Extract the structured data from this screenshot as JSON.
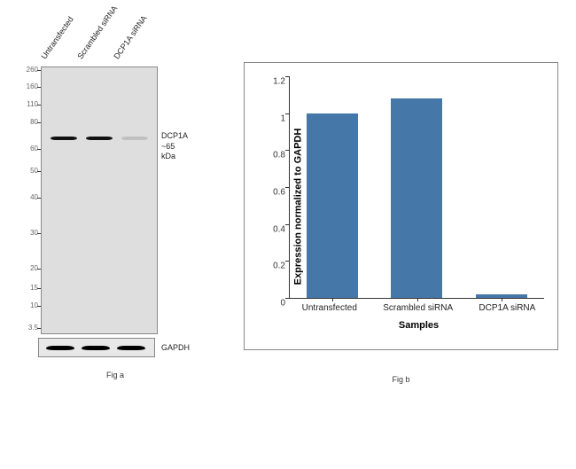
{
  "blot": {
    "lanes": [
      "Untransfected",
      "Scrambled siRNA",
      "DCP1A siRNA"
    ],
    "markers": [
      {
        "label": "260",
        "pos": 4
      },
      {
        "label": "160",
        "pos": 23
      },
      {
        "label": "110",
        "pos": 43
      },
      {
        "label": "80",
        "pos": 63
      },
      {
        "label": "60",
        "pos": 93
      },
      {
        "label": "50",
        "pos": 118
      },
      {
        "label": "40",
        "pos": 148
      },
      {
        "label": "30",
        "pos": 188
      },
      {
        "label": "20",
        "pos": 228
      },
      {
        "label": "15",
        "pos": 250
      },
      {
        "label": "10",
        "pos": 270
      },
      {
        "label": "3.5",
        "pos": 295
      }
    ],
    "target_label": "DCP1A",
    "target_size": "~65 kDa",
    "control_label": "GAPDH",
    "band_y": 78,
    "band_color": "#111111",
    "blot_bg": "#dedede"
  },
  "chart": {
    "type": "bar",
    "ylabel": "Expression normalized to GAPDH",
    "xlabel": "Samples",
    "categories": [
      "Untransfected",
      "Scrambled siRNA",
      "DCP1A siRNA"
    ],
    "values": [
      1.0,
      1.08,
      0.02
    ],
    "ylim_max": 1.2,
    "ytick_step": 0.2,
    "yticks": [
      "0",
      "0.2",
      "0.4",
      "0.6",
      "0.8",
      "1",
      "1.2"
    ],
    "bar_color": "#4577a9",
    "border_color": "#888888",
    "axis_color": "#333333"
  },
  "captions": {
    "a": "Fig a",
    "b": "Fig b"
  }
}
